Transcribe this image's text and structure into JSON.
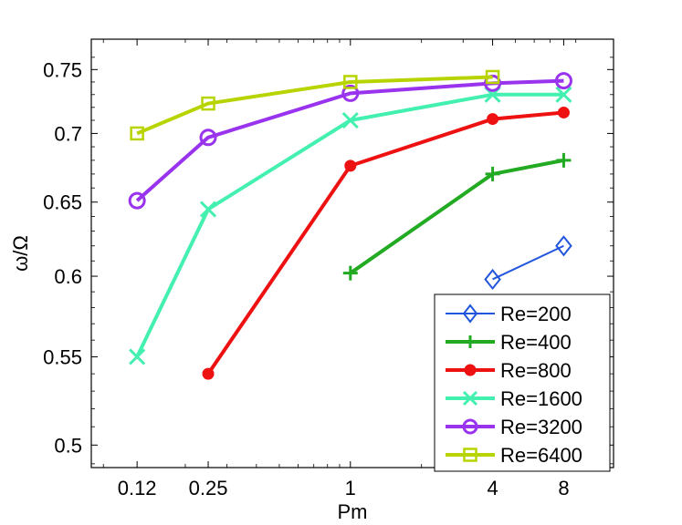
{
  "chart_data": {
    "type": "line",
    "title": "",
    "xlabel": "Pm",
    "ylabel": "ω/Ω",
    "xscale": "log",
    "yscale": "log",
    "xlim": [
      0.08,
      13
    ],
    "ylim": [
      0.488,
      0.775
    ],
    "x_ticks": [
      0.125,
      0.25,
      1,
      4,
      8
    ],
    "x_tick_labels": [
      "0.12",
      "0.25",
      "1",
      "4",
      "8"
    ],
    "y_ticks": [
      0.5,
      0.55,
      0.6,
      0.65,
      0.7,
      0.75
    ],
    "y_tick_labels": [
      "0.5",
      "0.55",
      "0.6",
      "0.65",
      "0.7",
      "0.75"
    ],
    "grid": false,
    "legend_position": "bottom-right",
    "series": [
      {
        "name": "Re=200",
        "color": "#2255dd",
        "marker": "diamond",
        "x": [
          4,
          8
        ],
        "y": [
          0.598,
          0.62
        ]
      },
      {
        "name": "Re=400",
        "color": "#22aa22",
        "marker": "plus",
        "x": [
          1,
          4,
          8
        ],
        "y": [
          0.602,
          0.67,
          0.68
        ]
      },
      {
        "name": "Re=800",
        "color": "#ee1111",
        "marker": "dot",
        "x": [
          0.25,
          1,
          4,
          8
        ],
        "y": [
          0.54,
          0.676,
          0.711,
          0.716
        ]
      },
      {
        "name": "Re=1600",
        "color": "#44f0b0",
        "marker": "x",
        "x": [
          0.125,
          0.25,
          1,
          4,
          8
        ],
        "y": [
          0.55,
          0.645,
          0.71,
          0.73,
          0.73
        ]
      },
      {
        "name": "Re=3200",
        "color": "#9933ee",
        "marker": "circle",
        "x": [
          0.125,
          0.25,
          1,
          4,
          8
        ],
        "y": [
          0.651,
          0.697,
          0.731,
          0.739,
          0.741
        ]
      },
      {
        "name": "Re=6400",
        "color": "#b8d400",
        "marker": "square",
        "x": [
          0.125,
          0.25,
          1,
          4
        ],
        "y": [
          0.7,
          0.723,
          0.74,
          0.744
        ]
      }
    ]
  }
}
